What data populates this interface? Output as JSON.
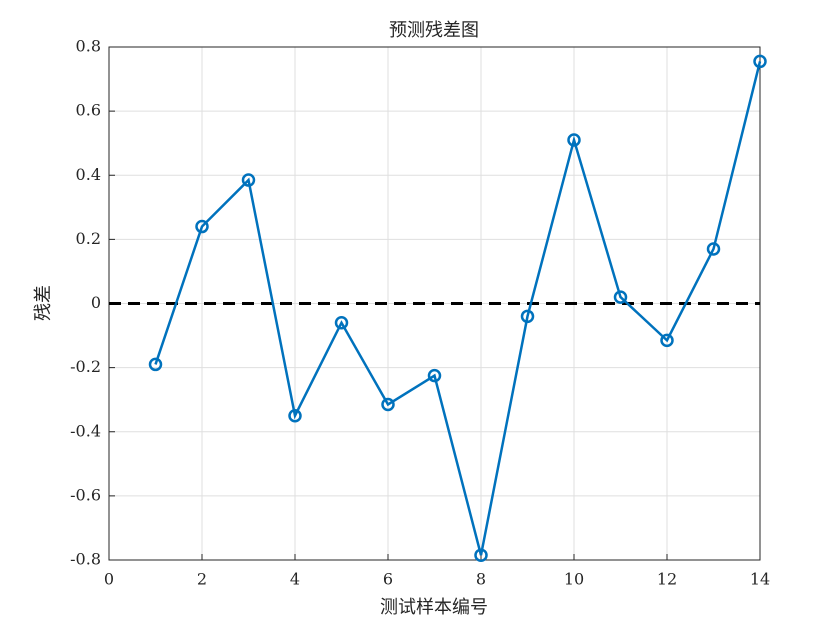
{
  "chart_data": {
    "type": "line",
    "title": "预测残差图",
    "xlabel": "测试样本编号",
    "ylabel": "残差",
    "x": [
      1,
      2,
      3,
      4,
      5,
      6,
      7,
      8,
      9,
      10,
      11,
      12,
      13,
      14
    ],
    "series": [
      {
        "color": "#0072bd",
        "values": [
          -0.19,
          0.24,
          0.385,
          -0.35,
          -0.06,
          -0.315,
          -0.225,
          -0.785,
          -0.04,
          0.51,
          0.02,
          -0.115,
          0.17,
          0.755
        ]
      }
    ],
    "hline": 0,
    "xlim": [
      0,
      14
    ],
    "xticks": [
      0,
      2,
      4,
      6,
      8,
      10,
      12,
      14
    ],
    "ylim": [
      -0.8,
      0.8
    ],
    "yticks": [
      -0.8,
      -0.6,
      -0.4,
      -0.2,
      0,
      0.2,
      0.4,
      0.6,
      0.8
    ],
    "grid": true
  }
}
